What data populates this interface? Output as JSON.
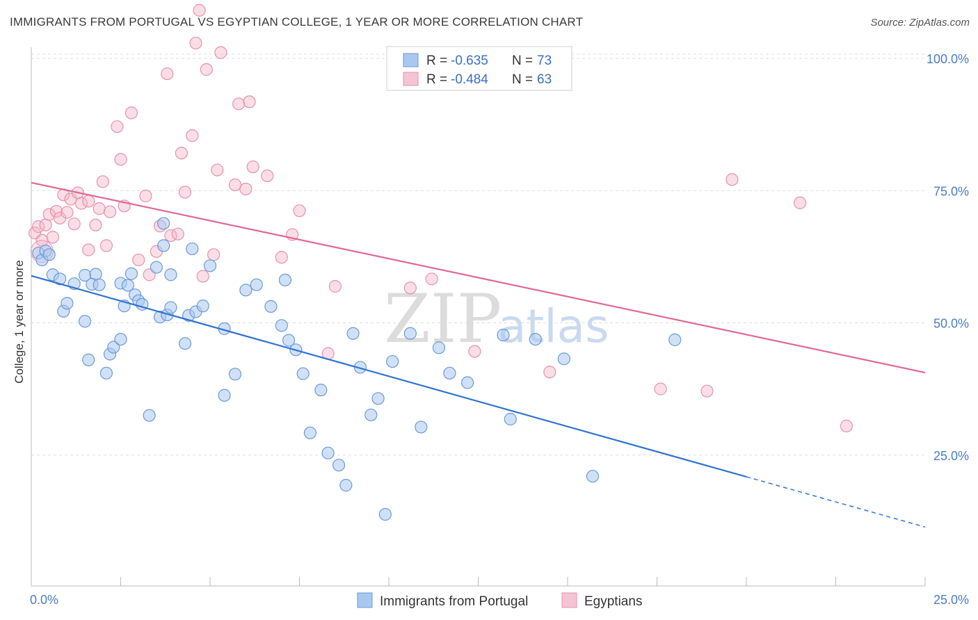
{
  "title": "IMMIGRANTS FROM PORTUGAL VS EGYPTIAN COLLEGE, 1 YEAR OR MORE CORRELATION CHART",
  "source": "Source: ZipAtlas.com",
  "watermark": {
    "zip": "ZIP",
    "atlas": "atlas"
  },
  "colors": {
    "blue_fill": "#a9c8f0",
    "blue_stroke": "#6a9ad8",
    "blue_line": "#2f72d0",
    "pink_fill": "#f5b5c8",
    "pink_stroke": "#e890ae",
    "pink_line": "#e06890",
    "tick": "#4a7cc8",
    "grid": "#dddddd"
  },
  "legend": {
    "rows": [
      {
        "r_label": "R = ",
        "r_value": "-0.635",
        "n_label": "N = ",
        "n_value": "73"
      },
      {
        "r_label": "R = ",
        "r_value": "-0.484",
        "n_label": "N = ",
        "n_value": "63"
      }
    ]
  },
  "chart_data": {
    "type": "scatter",
    "title": "IMMIGRANTS FROM PORTUGAL VS EGYPTIAN COLLEGE, 1 YEAR OR MORE CORRELATION CHART",
    "xlabel": "",
    "ylabel": "College, 1 year or more",
    "xlim": [
      0,
      25
    ],
    "ylim": [
      0,
      100
    ],
    "x_ticks": [
      "0.0%",
      "25.0%"
    ],
    "y_ticks": [
      {
        "value": 25,
        "label": "25.0%"
      },
      {
        "value": 50,
        "label": "50.0%"
      },
      {
        "value": 75,
        "label": "75.0%"
      },
      {
        "value": 100,
        "label": "100.0%"
      }
    ],
    "grid": true,
    "legend_position": "top-center",
    "series": [
      {
        "name": "Immigrants from Portugal",
        "color": "blue",
        "R": -0.635,
        "N": 73,
        "trend": {
          "x0": 0,
          "y0": 58.9,
          "x1": 20,
          "y1": 20.9,
          "dash_to_x": 25,
          "dash_to_y": 11.4
        },
        "points": [
          [
            0.2,
            63.2
          ],
          [
            0.3,
            61.9
          ],
          [
            0.4,
            63.6
          ],
          [
            0.5,
            62.9
          ],
          [
            0.6,
            59.1
          ],
          [
            0.8,
            58.3
          ],
          [
            0.9,
            52.2
          ],
          [
            1.0,
            53.7
          ],
          [
            1.2,
            57.4
          ],
          [
            1.5,
            59.0
          ],
          [
            1.5,
            50.3
          ],
          [
            1.6,
            43.0
          ],
          [
            1.8,
            59.2
          ],
          [
            1.7,
            57.3
          ],
          [
            1.9,
            57.2
          ],
          [
            2.1,
            40.5
          ],
          [
            2.2,
            44.1
          ],
          [
            2.3,
            45.4
          ],
          [
            2.5,
            46.9
          ],
          [
            2.5,
            57.5
          ],
          [
            2.6,
            53.2
          ],
          [
            2.7,
            57.1
          ],
          [
            2.8,
            59.3
          ],
          [
            2.9,
            55.3
          ],
          [
            3.0,
            54.2
          ],
          [
            3.1,
            53.5
          ],
          [
            3.3,
            32.5
          ],
          [
            3.5,
            60.5
          ],
          [
            3.6,
            51.1
          ],
          [
            3.7,
            64.6
          ],
          [
            3.7,
            68.8
          ],
          [
            3.8,
            51.5
          ],
          [
            3.9,
            52.9
          ],
          [
            3.9,
            59.1
          ],
          [
            4.3,
            46.1
          ],
          [
            4.4,
            51.4
          ],
          [
            4.5,
            64.0
          ],
          [
            4.6,
            52.1
          ],
          [
            4.8,
            53.2
          ],
          [
            5.0,
            60.8
          ],
          [
            5.4,
            48.9
          ],
          [
            5.4,
            36.3
          ],
          [
            5.7,
            40.3
          ],
          [
            6.0,
            56.2
          ],
          [
            6.3,
            57.2
          ],
          [
            6.7,
            53.1
          ],
          [
            7.0,
            49.5
          ],
          [
            7.1,
            58.1
          ],
          [
            7.2,
            46.7
          ],
          [
            7.4,
            44.9
          ],
          [
            7.6,
            40.4
          ],
          [
            7.8,
            29.2
          ],
          [
            8.1,
            37.3
          ],
          [
            8.3,
            25.4
          ],
          [
            8.6,
            23.1
          ],
          [
            8.8,
            19.3
          ],
          [
            9.0,
            48.0
          ],
          [
            9.2,
            41.6
          ],
          [
            9.5,
            32.6
          ],
          [
            9.7,
            35.7
          ],
          [
            10.1,
            42.7
          ],
          [
            10.6,
            48.0
          ],
          [
            10.9,
            30.3
          ],
          [
            11.4,
            45.3
          ],
          [
            11.7,
            40.5
          ],
          [
            12.2,
            38.7
          ],
          [
            13.2,
            47.7
          ],
          [
            13.4,
            31.8
          ],
          [
            14.1,
            46.9
          ],
          [
            14.9,
            43.2
          ],
          [
            15.7,
            21.0
          ],
          [
            18.0,
            46.8
          ],
          [
            9.9,
            13.8
          ]
        ]
      },
      {
        "name": "Egyptians",
        "color": "pink",
        "R": -0.484,
        "N": 63,
        "trend": {
          "x0": 0,
          "y0": 76.5,
          "x1": 25,
          "y1": 40.6
        },
        "points": [
          [
            0.1,
            67.0
          ],
          [
            0.2,
            68.2
          ],
          [
            0.3,
            65.6
          ],
          [
            0.4,
            68.5
          ],
          [
            0.5,
            70.5
          ],
          [
            0.6,
            66.2
          ],
          [
            0.7,
            71.1
          ],
          [
            0.8,
            69.8
          ],
          [
            0.9,
            74.2
          ],
          [
            1.0,
            70.9
          ],
          [
            1.1,
            73.4
          ],
          [
            1.2,
            68.7
          ],
          [
            1.3,
            74.6
          ],
          [
            1.4,
            72.6
          ],
          [
            1.6,
            73.0
          ],
          [
            1.6,
            63.8
          ],
          [
            1.8,
            68.5
          ],
          [
            1.9,
            71.6
          ],
          [
            2.0,
            76.7
          ],
          [
            2.1,
            64.6
          ],
          [
            2.2,
            71.0
          ],
          [
            2.4,
            87.1
          ],
          [
            2.5,
            80.9
          ],
          [
            2.6,
            72.1
          ],
          [
            2.8,
            89.7
          ],
          [
            3.0,
            61.9
          ],
          [
            3.2,
            74.0
          ],
          [
            3.3,
            59.1
          ],
          [
            3.5,
            63.5
          ],
          [
            3.6,
            68.3
          ],
          [
            3.8,
            97.1
          ],
          [
            3.9,
            66.5
          ],
          [
            4.1,
            66.8
          ],
          [
            4.2,
            82.1
          ],
          [
            4.3,
            74.7
          ],
          [
            4.5,
            85.4
          ],
          [
            4.6,
            102.9
          ],
          [
            4.7,
            109.1
          ],
          [
            4.8,
            58.8
          ],
          [
            4.9,
            97.9
          ],
          [
            5.1,
            62.9
          ],
          [
            5.2,
            78.9
          ],
          [
            5.3,
            101.1
          ],
          [
            5.7,
            76.1
          ],
          [
            5.8,
            91.4
          ],
          [
            6.0,
            75.3
          ],
          [
            6.1,
            91.8
          ],
          [
            6.2,
            79.5
          ],
          [
            6.6,
            77.8
          ],
          [
            7.0,
            62.4
          ],
          [
            7.3,
            66.7
          ],
          [
            7.5,
            71.2
          ],
          [
            8.3,
            44.2
          ],
          [
            8.5,
            56.9
          ],
          [
            10.6,
            56.6
          ],
          [
            11.2,
            58.3
          ],
          [
            12.4,
            44.6
          ],
          [
            14.5,
            40.7
          ],
          [
            17.6,
            37.5
          ],
          [
            18.9,
            37.1
          ],
          [
            19.6,
            77.1
          ],
          [
            21.5,
            72.7
          ],
          [
            22.8,
            30.5
          ]
        ]
      }
    ]
  },
  "bottom_legend": [
    "Immigrants from Portugal",
    "Egyptians"
  ]
}
